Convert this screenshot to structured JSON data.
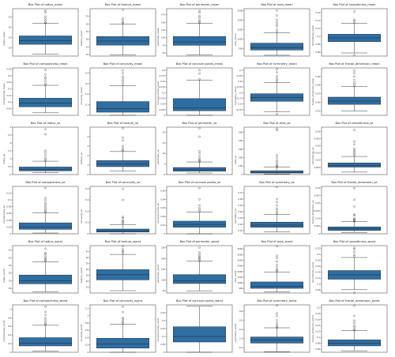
{
  "chart_data": [
    {
      "type": "box",
      "title": "Box Plot of radius_mean",
      "ylabel": "radius_mean",
      "ylim": [
        6,
        29
      ],
      "yticks": [
        10,
        15,
        20,
        25
      ],
      "box": {
        "min": 6.98,
        "q1": 11.7,
        "median": 13.37,
        "q3": 15.78,
        "max": 21.9,
        "outliers": [
          22.0,
          22.3,
          23.3,
          24.2,
          25.2,
          27.2,
          28.1
        ]
      }
    },
    {
      "type": "box",
      "title": "Box Plot of texture_mean",
      "ylabel": "texture_mean",
      "ylim": [
        9,
        40
      ],
      "yticks": [
        10,
        15,
        20,
        25,
        30,
        35
      ],
      "box": {
        "min": 9.7,
        "q1": 16.17,
        "median": 18.84,
        "q3": 21.8,
        "max": 29.9,
        "outliers": [
          30.6,
          31.1,
          32.5,
          33.6,
          39.3
        ]
      }
    },
    {
      "type": "box",
      "title": "Box Plot of perimeter_mean",
      "ylabel": "perimeter_mean",
      "ylim": [
        40,
        195
      ],
      "yticks": [
        50,
        75,
        100,
        125,
        150,
        175
      ],
      "box": {
        "min": 43.8,
        "q1": 75.2,
        "median": 86.2,
        "q3": 104.1,
        "max": 147.3,
        "outliers": [
          149,
          152,
          158,
          166,
          171,
          182,
          188
        ]
      }
    },
    {
      "type": "box",
      "title": "Box Plot of area_mean",
      "ylabel": "area_mean",
      "ylim": [
        100,
        2600
      ],
      "yticks": [
        500,
        1000,
        1500,
        2000,
        2500
      ],
      "box": {
        "min": 143,
        "q1": 420,
        "median": 551,
        "q3": 783,
        "max": 1326,
        "outliers": [
          1386,
          1500,
          1670,
          1761,
          1880,
          2010,
          2250,
          2501
        ]
      }
    },
    {
      "type": "box",
      "title": "Box Plot of smoothness_mean",
      "ylabel": "smoothness_mean",
      "ylim": [
        0.05,
        0.17
      ],
      "yticks": [
        0.06,
        0.08,
        0.1,
        0.12,
        0.14,
        0.16
      ],
      "box": {
        "min": 0.058,
        "q1": 0.0864,
        "median": 0.0959,
        "q3": 0.1053,
        "max": 0.1326,
        "outliers": [
          0.0526,
          0.134,
          0.139,
          0.142,
          0.163
        ]
      }
    },
    {
      "type": "box",
      "title": "Box Plot of compactness_mean",
      "ylabel": "compactness_mean",
      "ylim": [
        0.0,
        0.36
      ],
      "yticks": [
        0.05,
        0.1,
        0.15,
        0.2,
        0.25,
        0.3,
        0.35
      ],
      "box": {
        "min": 0.019,
        "q1": 0.065,
        "median": 0.093,
        "q3": 0.13,
        "max": 0.228,
        "outliers": [
          0.23,
          0.24,
          0.26,
          0.28,
          0.29,
          0.31,
          0.345
        ]
      }
    },
    {
      "type": "box",
      "title": "Box Plot of concavity_mean",
      "ylabel": "concavity_mean",
      "ylim": [
        0.0,
        0.45
      ],
      "yticks": [
        0.0,
        0.1,
        0.2,
        0.3,
        0.4
      ],
      "box": {
        "min": 0.0,
        "q1": 0.0296,
        "median": 0.0615,
        "q3": 0.1307,
        "max": 0.282,
        "outliers": [
          0.29,
          0.31,
          0.33,
          0.35,
          0.37,
          0.4,
          0.427
        ]
      }
    },
    {
      "type": "box",
      "title": "Box Plot of concave points_mean",
      "ylabel": "concave points_mean",
      "ylim": [
        0.0,
        0.21
      ],
      "yticks": [
        0.0,
        0.025,
        0.05,
        0.075,
        0.1,
        0.125,
        0.15,
        0.175,
        0.2
      ],
      "box": {
        "min": 0.0,
        "q1": 0.0203,
        "median": 0.0335,
        "q3": 0.074,
        "max": 0.155,
        "outliers": [
          0.16,
          0.185,
          0.2
        ]
      }
    },
    {
      "type": "box",
      "title": "Box Plot of symmetry_mean",
      "ylabel": "symmetry_mean",
      "ylim": [
        0.1,
        0.31
      ],
      "yticks": [
        0.125,
        0.15,
        0.175,
        0.2,
        0.225,
        0.25,
        0.275,
        0.3
      ],
      "box": {
        "min": 0.1167,
        "q1": 0.1619,
        "median": 0.1792,
        "q3": 0.1957,
        "max": 0.246,
        "outliers": [
          0.106,
          0.249,
          0.256,
          0.264,
          0.274,
          0.29,
          0.304
        ]
      }
    },
    {
      "type": "box",
      "title": "Box Plot of fractal_dimension_mean",
      "ylabel": "fractal_dimension_mean",
      "ylim": [
        0.045,
        0.1
      ],
      "yticks": [
        0.05,
        0.06,
        0.07,
        0.08,
        0.09
      ],
      "box": {
        "min": 0.05,
        "q1": 0.0577,
        "median": 0.0615,
        "q3": 0.0661,
        "max": 0.0786,
        "outliers": [
          0.079,
          0.081,
          0.083,
          0.086,
          0.09,
          0.094,
          0.097
        ]
      }
    },
    {
      "type": "box",
      "title": "Box Plot of radius_se",
      "ylabel": "radius_se",
      "ylim": [
        0.0,
        3.0
      ],
      "yticks": [
        0.0,
        0.5,
        1.0,
        1.5,
        2.0,
        2.5,
        3.0
      ],
      "box": {
        "min": 0.112,
        "q1": 0.2324,
        "median": 0.3242,
        "q3": 0.4789,
        "max": 0.846,
        "outliers": [
          0.87,
          0.95,
          1.05,
          1.21,
          1.37,
          1.51,
          2.55,
          2.87
        ]
      }
    },
    {
      "type": "box",
      "title": "Box Plot of texture_se",
      "ylabel": "texture_se",
      "ylim": [
        0.0,
        5.0
      ],
      "yticks": [
        0,
        1,
        2,
        3,
        4
      ],
      "box": {
        "min": 0.36,
        "q1": 0.834,
        "median": 1.108,
        "q3": 1.474,
        "max": 2.43,
        "outliers": [
          2.5,
          2.6,
          2.8,
          3.0,
          3.6,
          3.9,
          4.88
        ]
      }
    },
    {
      "type": "box",
      "title": "Box Plot of perimeter_se",
      "ylabel": "perimeter_se",
      "ylim": [
        0,
        22.5
      ],
      "yticks": [
        0,
        5,
        10,
        15,
        20
      ],
      "box": {
        "min": 0.757,
        "q1": 1.606,
        "median": 2.287,
        "q3": 3.357,
        "max": 5.98,
        "outliers": [
          6.1,
          6.5,
          7.0,
          7.7,
          8.8,
          10.1,
          11.1,
          18.0,
          21.98
        ]
      }
    },
    {
      "type": "box",
      "title": "Box Plot of area_se",
      "ylabel": "area_se",
      "ylim": [
        0,
        560
      ],
      "yticks": [
        0,
        100,
        200,
        300,
        400,
        500
      ],
      "box": {
        "min": 6.8,
        "q1": 17.85,
        "median": 24.53,
        "q3": 45.19,
        "max": 86.2,
        "outliers": [
          90,
          100,
          110,
          130,
          150,
          170,
          200,
          230,
          525,
          542
        ]
      }
    },
    {
      "type": "box",
      "title": "Box Plot of smoothness_se",
      "ylabel": "smoothness_se",
      "ylim": [
        0.0,
        0.033
      ],
      "yticks": [
        0.005,
        0.01,
        0.015,
        0.02,
        0.025,
        0.03
      ],
      "box": {
        "min": 0.0017,
        "q1": 0.0052,
        "median": 0.0064,
        "q3": 0.0081,
        "max": 0.0126,
        "outliers": [
          0.013,
          0.014,
          0.015,
          0.016,
          0.017,
          0.018,
          0.021,
          0.023,
          0.031
        ]
      }
    },
    {
      "type": "box",
      "title": "Box Plot of compactness_se",
      "ylabel": "compactness_se",
      "ylim": [
        0.0,
        0.14
      ],
      "yticks": [
        0.0,
        0.02,
        0.04,
        0.06,
        0.08,
        0.1,
        0.12
      ],
      "box": {
        "min": 0.0023,
        "q1": 0.0131,
        "median": 0.0204,
        "q3": 0.0324,
        "max": 0.0613,
        "outliers": [
          0.063,
          0.066,
          0.07,
          0.075,
          0.08,
          0.086,
          0.091,
          0.099,
          0.106,
          0.135
        ]
      }
    },
    {
      "type": "box",
      "title": "Box Plot of concavity_se",
      "ylabel": "concavity_se",
      "ylim": [
        0.0,
        0.42
      ],
      "yticks": [
        0.0,
        0.1,
        0.2,
        0.3,
        0.4
      ],
      "box": {
        "min": 0.0,
        "q1": 0.0151,
        "median": 0.0259,
        "q3": 0.0421,
        "max": 0.0823,
        "outliers": [
          0.09,
          0.1,
          0.11,
          0.12,
          0.14,
          0.15,
          0.3,
          0.396
        ]
      }
    },
    {
      "type": "box",
      "title": "Box Plot of concave points_se",
      "ylabel": "concave points_se",
      "ylim": [
        0.0,
        0.055
      ],
      "yticks": [
        0.0,
        0.01,
        0.02,
        0.03,
        0.04,
        0.05
      ],
      "box": {
        "min": 0.0,
        "q1": 0.0076,
        "median": 0.0109,
        "q3": 0.0147,
        "max": 0.0252,
        "outliers": [
          0.026,
          0.028,
          0.03,
          0.033,
          0.04,
          0.053
        ]
      }
    },
    {
      "type": "box",
      "title": "Box Plot of symmetry_se",
      "ylabel": "symmetry_se",
      "ylim": [
        0.005,
        0.08
      ],
      "yticks": [
        0.01,
        0.02,
        0.03,
        0.04,
        0.05,
        0.06,
        0.07
      ],
      "box": {
        "min": 0.0079,
        "q1": 0.0152,
        "median": 0.0187,
        "q3": 0.0235,
        "max": 0.0358,
        "outliers": [
          0.037,
          0.039,
          0.042,
          0.045,
          0.05,
          0.055,
          0.06,
          0.079
        ]
      }
    },
    {
      "type": "box",
      "title": "Box Plot of fractal_dimension_se",
      "ylabel": "fractal_dimension_se",
      "ylim": [
        0.0,
        0.031
      ],
      "yticks": [
        0.0,
        0.005,
        0.01,
        0.015,
        0.02,
        0.025,
        0.03
      ],
      "box": {
        "min": 0.0009,
        "q1": 0.0022,
        "median": 0.0032,
        "q3": 0.0045,
        "max": 0.0079,
        "outliers": [
          0.008,
          0.0085,
          0.009,
          0.0095,
          0.01,
          0.012,
          0.0126,
          0.0178,
          0.0223,
          0.0298
        ]
      }
    },
    {
      "type": "box",
      "title": "Box Plot of radius_worst",
      "ylabel": "radius_worst",
      "ylim": [
        7,
        38
      ],
      "yticks": [
        10,
        15,
        20,
        25,
        30,
        35
      ],
      "box": {
        "min": 7.93,
        "q1": 13.01,
        "median": 14.97,
        "q3": 18.79,
        "max": 27.3,
        "outliers": [
          27.9,
          28.4,
          29.2,
          30.0,
          31.0,
          32.5,
          33.1,
          36.0
        ]
      }
    },
    {
      "type": "box",
      "title": "Box Plot of texture_worst",
      "ylabel": "texture_worst",
      "ylim": [
        10,
        50
      ],
      "yticks": [
        15,
        20,
        25,
        30,
        35,
        40,
        45
      ],
      "box": {
        "min": 12.0,
        "q1": 21.08,
        "median": 25.41,
        "q3": 29.72,
        "max": 42.6,
        "outliers": [
          43.4,
          44.9,
          45.4,
          47.2,
          49.5
        ]
      }
    },
    {
      "type": "box",
      "title": "Box Plot of perimeter_worst",
      "ylabel": "perimeter_worst",
      "ylim": [
        40,
        260
      ],
      "yticks": [
        50,
        100,
        150,
        200,
        250
      ],
      "box": {
        "min": 50.4,
        "q1": 84.1,
        "median": 97.7,
        "q3": 125.4,
        "max": 187.3,
        "outliers": [
          188,
          195,
          200,
          206,
          211,
          220,
          229,
          251
        ]
      }
    },
    {
      "type": "box",
      "title": "Box Plot of area_worst",
      "ylabel": "area_worst",
      "ylim": [
        100,
        4300
      ],
      "yticks": [
        500,
        1000,
        1500,
        2000,
        2500,
        3000,
        3500,
        4000
      ],
      "box": {
        "min": 185,
        "q1": 515,
        "median": 686,
        "q3": 1084,
        "max": 1938,
        "outliers": [
          2000,
          2100,
          2200,
          2400,
          2600,
          2900,
          3200,
          3400,
          4254
        ]
      }
    },
    {
      "type": "box",
      "title": "Box Plot of smoothness_worst",
      "ylabel": "smoothness_worst",
      "ylim": [
        0.07,
        0.23
      ],
      "yticks": [
        0.08,
        0.1,
        0.12,
        0.14,
        0.16,
        0.18,
        0.2,
        0.22
      ],
      "box": {
        "min": 0.0812,
        "q1": 0.1166,
        "median": 0.1313,
        "q3": 0.146,
        "max": 0.19,
        "outliers": [
          0.0712,
          0.194,
          0.2,
          0.209,
          0.218,
          0.223
        ]
      }
    },
    {
      "type": "box",
      "title": "Box Plot of compactness_worst",
      "ylabel": "compactness_worst",
      "ylim": [
        0.0,
        1.1
      ],
      "yticks": [
        0.0,
        0.2,
        0.4,
        0.6,
        0.8,
        1.0
      ],
      "box": {
        "min": 0.027,
        "q1": 0.147,
        "median": 0.212,
        "q3": 0.339,
        "max": 0.626,
        "outliers": [
          0.64,
          0.66,
          0.7,
          0.75,
          0.8,
          0.87,
          0.94,
          1.06
        ]
      }
    },
    {
      "type": "box",
      "title": "Box Plot of concavity_worst",
      "ylabel": "concavity_worst",
      "ylim": [
        0.0,
        1.3
      ],
      "yticks": [
        0.0,
        0.2,
        0.4,
        0.6,
        0.8,
        1.0,
        1.2
      ],
      "box": {
        "min": 0.0,
        "q1": 0.1145,
        "median": 0.2267,
        "q3": 0.3829,
        "max": 0.7727,
        "outliers": [
          0.79,
          0.82,
          0.86,
          0.91,
          0.94,
          1.1,
          1.25
        ]
      }
    },
    {
      "type": "box",
      "title": "Box Plot of concave points_worst",
      "ylabel": "concave points_worst",
      "ylim": [
        0.0,
        0.3
      ],
      "yticks": [
        0.0,
        0.05,
        0.1,
        0.15,
        0.2,
        0.25
      ],
      "box": {
        "min": 0.0,
        "q1": 0.0649,
        "median": 0.0999,
        "q3": 0.1614,
        "max": 0.291,
        "outliers": []
      }
    },
    {
      "type": "box",
      "title": "Box Plot of symmetry_worst",
      "ylabel": "symmetry_worst",
      "ylim": [
        0.15,
        0.67
      ],
      "yticks": [
        0.2,
        0.3,
        0.4,
        0.5,
        0.6
      ],
      "box": {
        "min": 0.1565,
        "q1": 0.2504,
        "median": 0.2822,
        "q3": 0.3179,
        "max": 0.4186,
        "outliers": [
          0.42,
          0.43,
          0.45,
          0.47,
          0.5,
          0.55,
          0.577,
          0.664
        ]
      }
    },
    {
      "type": "box",
      "title": "Box Plot of fractal_dimension_worst",
      "ylabel": "fractal_dimension_worst",
      "ylim": [
        0.05,
        0.21
      ],
      "yticks": [
        0.06,
        0.08,
        0.1,
        0.12,
        0.14,
        0.16,
        0.18,
        0.2
      ],
      "box": {
        "min": 0.055,
        "q1": 0.0715,
        "median": 0.08,
        "q3": 0.0921,
        "max": 0.1233,
        "outliers": [
          0.124,
          0.128,
          0.135,
          0.14,
          0.149,
          0.157,
          0.173,
          0.208
        ]
      }
    }
  ],
  "colors": {
    "box_fill": "#2f6ea3",
    "line": "#222222",
    "outlier": "#333333",
    "axis": "#333333"
  }
}
